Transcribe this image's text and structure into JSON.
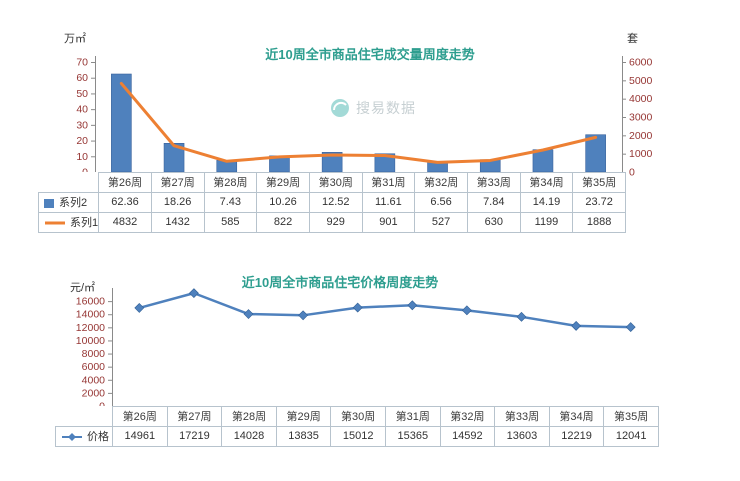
{
  "charts_meta": {
    "watermark_text": "搜易数据"
  },
  "chart_data": [
    {
      "type": "bar",
      "title": "近10周全市商品住宅成交量周度走势",
      "left_axis": {
        "unit": "万㎡",
        "ticks": [
          0,
          10,
          20,
          30,
          40,
          50,
          60,
          70
        ],
        "max": 70
      },
      "right_axis": {
        "unit": "套",
        "ticks": [
          0,
          1000,
          2000,
          3000,
          4000,
          5000,
          6000
        ],
        "max": 6000
      },
      "categories": [
        "第26周",
        "第27周",
        "第28周",
        "第29周",
        "第30周",
        "第31周",
        "第32周",
        "第33周",
        "第34周",
        "第35周"
      ],
      "series": [
        {
          "name": "系列2",
          "type": "bar",
          "axis": "left",
          "color": "#4f81bd",
          "values": [
            62.36,
            18.26,
            7.43,
            10.26,
            12.52,
            11.61,
            6.56,
            7.84,
            14.19,
            23.72
          ]
        },
        {
          "name": "系列1",
          "type": "line",
          "axis": "right",
          "color": "#ed8033",
          "values": [
            4832,
            1432,
            585,
            822,
            929,
            901,
            527,
            630,
            1199,
            1888
          ]
        }
      ],
      "legend_position": "table-left",
      "grid": false
    },
    {
      "type": "line",
      "title": "近10周全市商品住宅价格周度走势",
      "left_axis": {
        "unit": "元/㎡",
        "ticks": [
          0,
          2000,
          4000,
          6000,
          8000,
          10000,
          12000,
          14000,
          16000
        ],
        "max": 16000,
        "scale_max": 18000
      },
      "categories": [
        "第26周",
        "第27周",
        "第28周",
        "第29周",
        "第30周",
        "第31周",
        "第32周",
        "第33周",
        "第34周",
        "第35周"
      ],
      "series": [
        {
          "name": "价格",
          "type": "line-diamond",
          "axis": "left",
          "color": "#4f81bd",
          "values": [
            14961,
            17219,
            14028,
            13835,
            15012,
            15365,
            14592,
            13603,
            12219,
            12041
          ]
        }
      ],
      "legend_position": "table-left",
      "grid": false
    }
  ]
}
